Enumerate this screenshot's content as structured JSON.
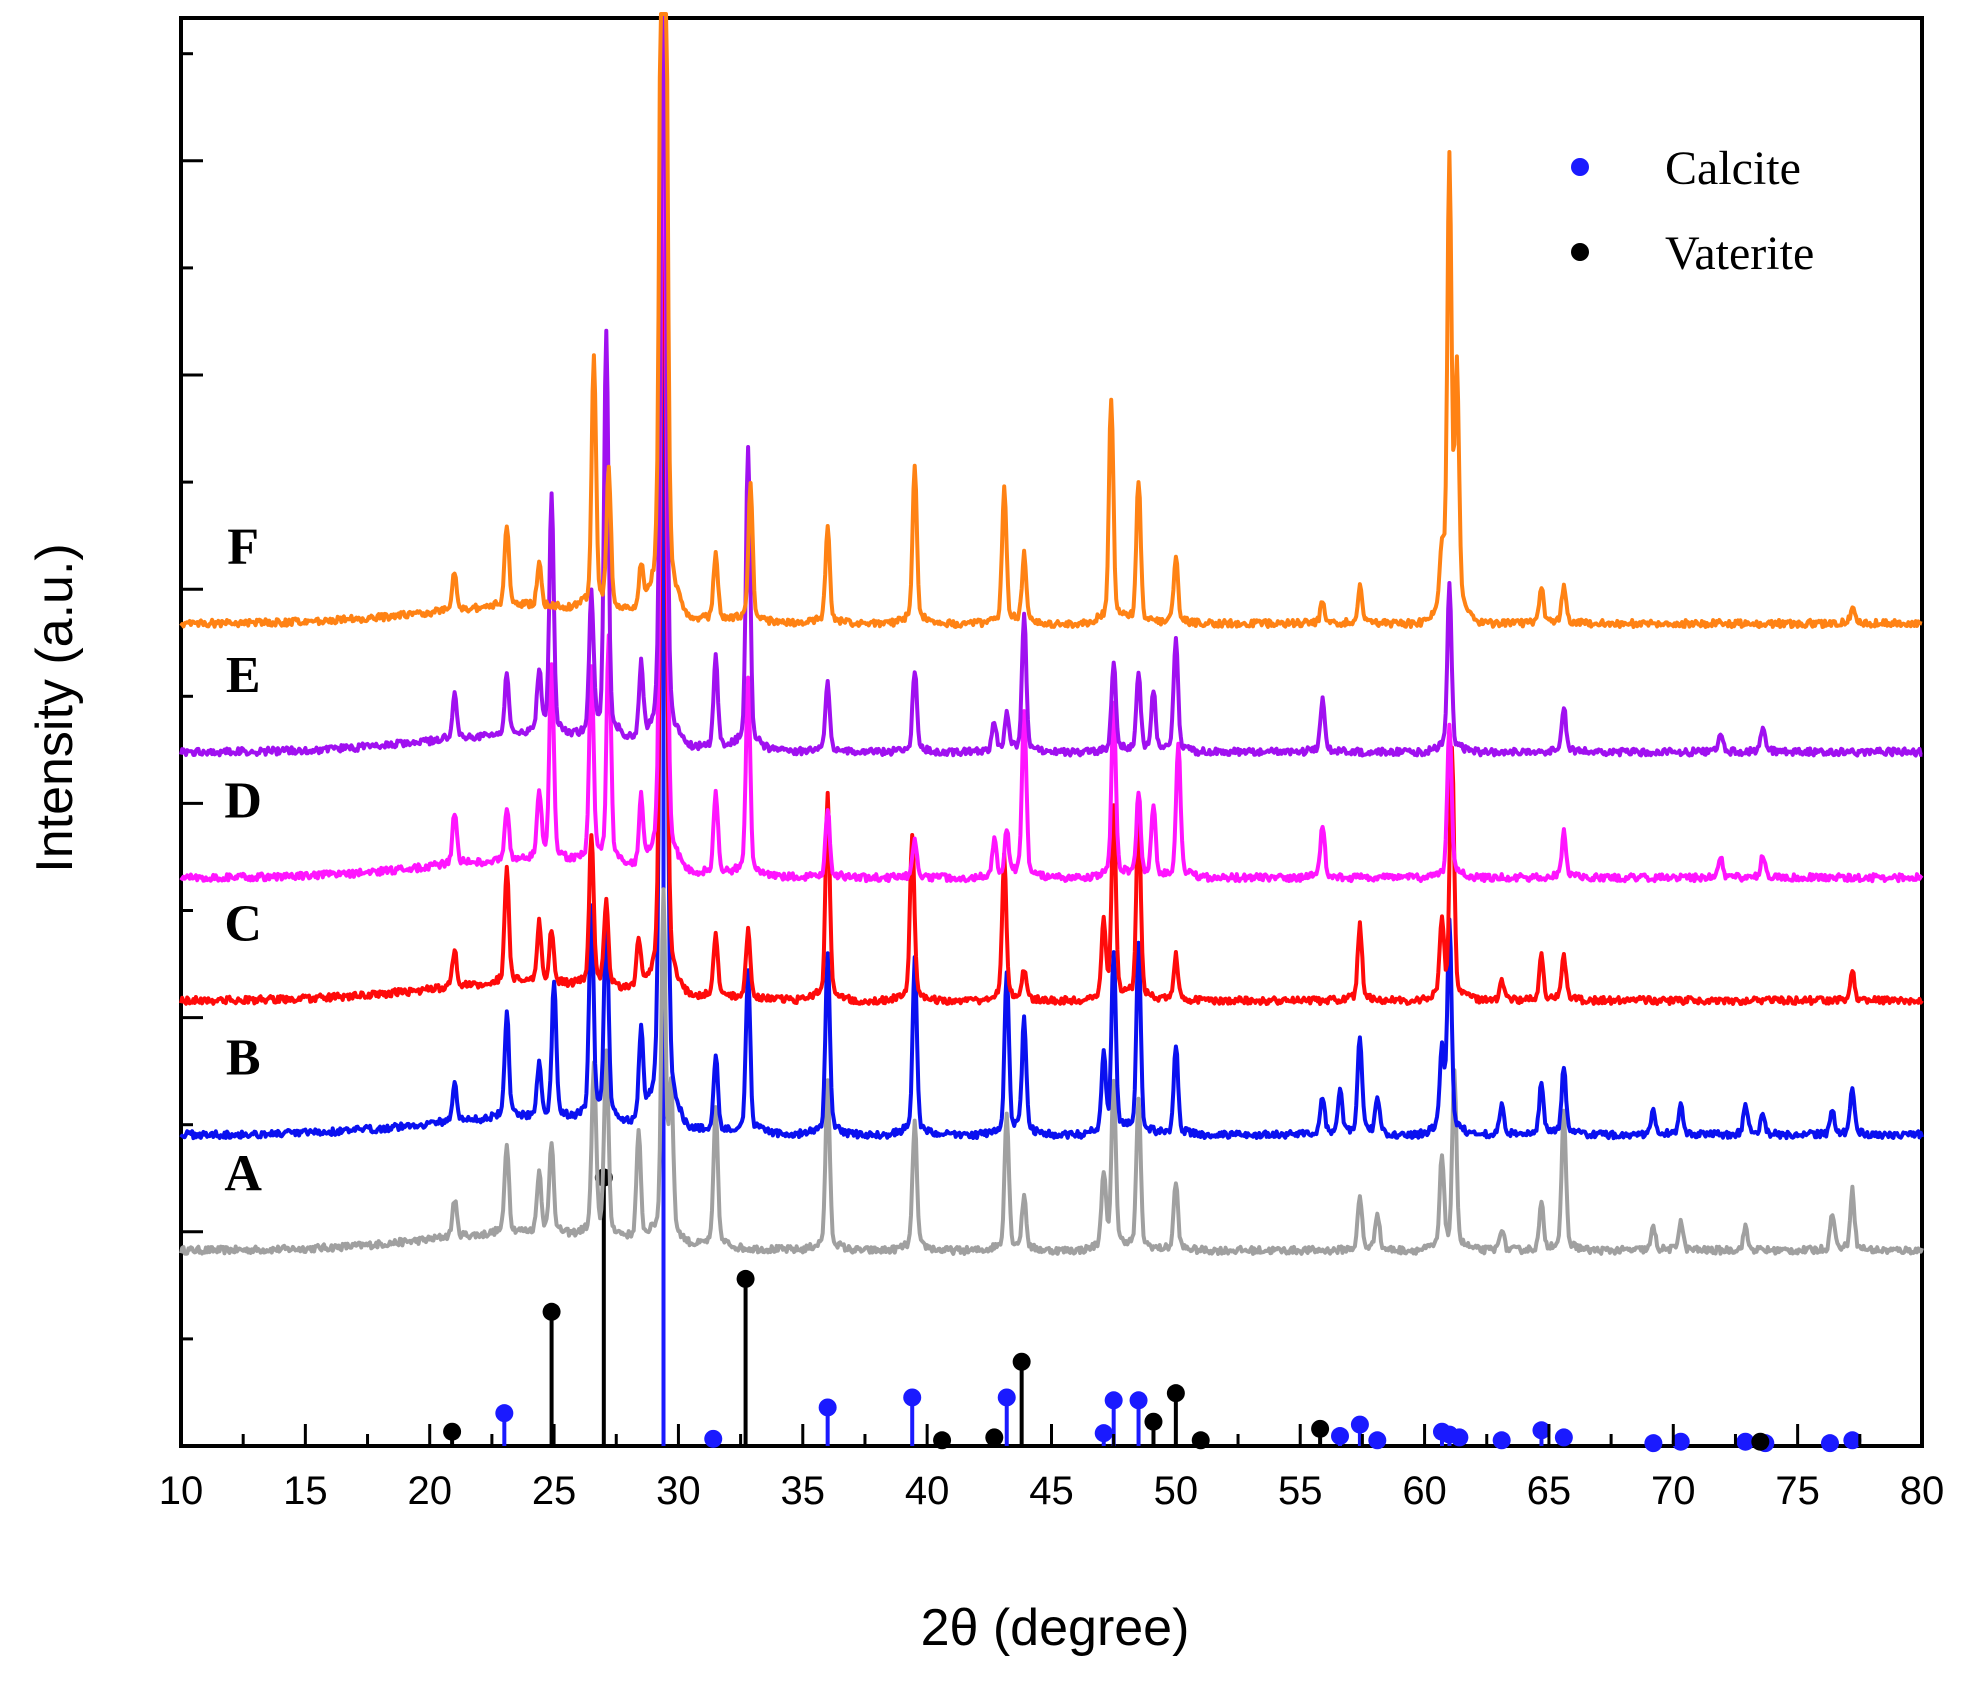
{
  "chart_data": {
    "type": "line",
    "xlabel": "2θ (degree)",
    "ylabel": "Intensity   (a.u.)",
    "xlim": [
      10,
      80
    ],
    "ylim": [
      0,
      10
    ],
    "x_ticks": [
      10,
      15,
      20,
      25,
      30,
      35,
      40,
      45,
      50,
      55,
      60,
      65,
      70,
      75,
      80
    ],
    "x_tick_labels": [
      "10",
      "15",
      "20",
      "25",
      "30",
      "35",
      "40",
      "45",
      "50",
      "55",
      "60",
      "65",
      "70",
      "75",
      "80"
    ],
    "y_tick_labels_shown": false,
    "legend": {
      "position": "top-right",
      "entries": [
        {
          "label": "Calcite",
          "color": "#1a1aff",
          "marker": "circle"
        },
        {
          "label": "Vaterite",
          "color": "#000000",
          "marker": "circle"
        }
      ]
    },
    "series": [
      {
        "name": "A",
        "color": "#a0a0a0",
        "baseline": 1.37,
        "slope": 0.0,
        "peaks": [
          [
            21.0,
            0.25
          ],
          [
            23.1,
            0.6
          ],
          [
            24.4,
            0.4
          ],
          [
            24.9,
            0.6
          ],
          [
            26.6,
            1.1
          ],
          [
            27.1,
            1.2
          ],
          [
            28.4,
            0.7
          ],
          [
            29.4,
            2.3
          ],
          [
            29.7,
            1.0
          ],
          [
            31.5,
            0.9
          ],
          [
            36.0,
            1.1
          ],
          [
            39.5,
            0.85
          ],
          [
            43.2,
            0.9
          ],
          [
            43.9,
            0.35
          ],
          [
            47.1,
            0.5
          ],
          [
            47.5,
            1.1
          ],
          [
            48.5,
            1.0
          ],
          [
            50.0,
            0.45
          ],
          [
            57.4,
            0.35
          ],
          [
            58.1,
            0.25
          ],
          [
            60.7,
            0.6
          ],
          [
            61.2,
            1.15
          ],
          [
            63.1,
            0.15
          ],
          [
            64.7,
            0.3
          ],
          [
            65.6,
            0.9
          ],
          [
            69.2,
            0.15
          ],
          [
            70.3,
            0.2
          ],
          [
            72.9,
            0.15
          ],
          [
            76.4,
            0.25
          ],
          [
            77.2,
            0.4
          ]
        ]
      },
      {
        "name": "B",
        "color": "#0a10f0",
        "baseline": 2.18,
        "slope": 0.0,
        "peaks": [
          [
            21.0,
            0.25
          ],
          [
            23.1,
            0.7
          ],
          [
            24.4,
            0.35
          ],
          [
            25.0,
            0.9
          ],
          [
            26.5,
            1.4
          ],
          [
            27.1,
            1.4
          ],
          [
            28.5,
            0.6
          ],
          [
            29.4,
            8.0
          ],
          [
            31.5,
            0.5
          ],
          [
            32.8,
            1.05
          ],
          [
            36.0,
            1.2
          ],
          [
            39.5,
            1.15
          ],
          [
            43.2,
            1.05
          ],
          [
            43.9,
            0.75
          ],
          [
            47.1,
            0.5
          ],
          [
            47.5,
            1.2
          ],
          [
            48.5,
            1.25
          ],
          [
            50.0,
            0.6
          ],
          [
            55.9,
            0.25
          ],
          [
            56.6,
            0.3
          ],
          [
            57.4,
            0.65
          ],
          [
            58.1,
            0.25
          ],
          [
            60.7,
            0.55
          ],
          [
            61.0,
            1.4
          ],
          [
            63.1,
            0.2
          ],
          [
            64.7,
            0.35
          ],
          [
            65.6,
            0.45
          ],
          [
            69.2,
            0.15
          ],
          [
            70.3,
            0.2
          ],
          [
            72.9,
            0.2
          ],
          [
            73.6,
            0.15
          ],
          [
            76.4,
            0.15
          ],
          [
            77.2,
            0.3
          ]
        ]
      },
      {
        "name": "C",
        "color": "#ff0a0a",
        "baseline": 3.12,
        "slope": 0.0,
        "peaks": [
          [
            21.0,
            0.25
          ],
          [
            23.1,
            0.75
          ],
          [
            24.4,
            0.4
          ],
          [
            24.9,
            0.35
          ],
          [
            26.5,
            1.0
          ],
          [
            27.1,
            0.55
          ],
          [
            28.4,
            0.35
          ],
          [
            29.4,
            5.6
          ],
          [
            31.5,
            0.4
          ],
          [
            32.8,
            0.45
          ],
          [
            36.0,
            1.35
          ],
          [
            39.4,
            1.1
          ],
          [
            43.1,
            0.95
          ],
          [
            43.9,
            0.2
          ],
          [
            47.1,
            0.5
          ],
          [
            47.5,
            1.25
          ],
          [
            48.5,
            1.3
          ],
          [
            50.0,
            0.3
          ],
          [
            57.4,
            0.5
          ],
          [
            60.7,
            0.5
          ],
          [
            61.1,
            1.65
          ],
          [
            63.1,
            0.15
          ],
          [
            64.7,
            0.3
          ],
          [
            65.6,
            0.3
          ],
          [
            77.2,
            0.2
          ]
        ]
      },
      {
        "name": "D",
        "color": "#ff14ff",
        "baseline": 3.98,
        "slope": 0.0,
        "peaks": [
          [
            21.0,
            0.35
          ],
          [
            23.1,
            0.35
          ],
          [
            24.4,
            0.45
          ],
          [
            24.9,
            1.3
          ],
          [
            26.5,
            1.3
          ],
          [
            27.2,
            1.5
          ],
          [
            28.5,
            0.45
          ],
          [
            29.4,
            5.4
          ],
          [
            31.5,
            0.55
          ],
          [
            32.8,
            1.3
          ],
          [
            36.0,
            0.45
          ],
          [
            39.5,
            0.25
          ],
          [
            42.7,
            0.25
          ],
          [
            43.2,
            0.3
          ],
          [
            43.9,
            1.1
          ],
          [
            47.5,
            1.15
          ],
          [
            48.5,
            0.55
          ],
          [
            49.1,
            0.45
          ],
          [
            50.1,
            0.9
          ],
          [
            55.9,
            0.35
          ],
          [
            61.0,
            1.0
          ],
          [
            65.6,
            0.3
          ],
          [
            71.9,
            0.15
          ],
          [
            73.6,
            0.15
          ]
        ]
      },
      {
        "name": "E",
        "color": "#a010f0",
        "baseline": 4.86,
        "slope": 0.0,
        "peaks": [
          [
            21.0,
            0.3
          ],
          [
            23.1,
            0.4
          ],
          [
            24.4,
            0.4
          ],
          [
            24.9,
            1.6
          ],
          [
            26.5,
            0.9
          ],
          [
            27.1,
            2.7
          ],
          [
            28.5,
            0.5
          ],
          [
            29.4,
            5.0
          ],
          [
            31.5,
            0.6
          ],
          [
            32.8,
            2.0
          ],
          [
            36.0,
            0.45
          ],
          [
            39.5,
            0.55
          ],
          [
            42.7,
            0.2
          ],
          [
            43.2,
            0.25
          ],
          [
            43.9,
            0.9
          ],
          [
            47.5,
            0.6
          ],
          [
            48.5,
            0.5
          ],
          [
            49.1,
            0.4
          ],
          [
            50.0,
            0.75
          ],
          [
            55.9,
            0.35
          ],
          [
            61.0,
            1.1
          ],
          [
            65.6,
            0.3
          ],
          [
            71.9,
            0.12
          ],
          [
            73.6,
            0.15
          ]
        ]
      },
      {
        "name": "F",
        "color": "#ff8214",
        "baseline": 5.76,
        "slope": 0.0,
        "peaks": [
          [
            21.0,
            0.25
          ],
          [
            23.1,
            0.55
          ],
          [
            24.4,
            0.3
          ],
          [
            26.6,
            1.65
          ],
          [
            27.2,
            0.9
          ],
          [
            28.5,
            0.3
          ],
          [
            29.4,
            8.0
          ],
          [
            31.5,
            0.45
          ],
          [
            32.9,
            0.9
          ],
          [
            36.0,
            0.65
          ],
          [
            39.5,
            1.05
          ],
          [
            43.1,
            0.9
          ],
          [
            43.9,
            0.45
          ],
          [
            47.4,
            1.5
          ],
          [
            48.5,
            0.95
          ],
          [
            50.0,
            0.45
          ],
          [
            55.9,
            0.15
          ],
          [
            57.4,
            0.25
          ],
          [
            60.7,
            0.4
          ],
          [
            61.0,
            3.0
          ],
          [
            61.3,
            1.6
          ],
          [
            64.7,
            0.25
          ],
          [
            65.6,
            0.25
          ],
          [
            77.2,
            0.1
          ]
        ]
      }
    ],
    "reference_sticks": {
      "Calcite": {
        "color": "#1a1aff",
        "positions": [
          23.0,
          29.4,
          31.4,
          36.0,
          39.4,
          43.2,
          47.1,
          47.5,
          48.5,
          56.6,
          57.4,
          58.1,
          60.7,
          61.0,
          61.4,
          63.1,
          64.7,
          65.6,
          69.2,
          70.3,
          72.9,
          73.7,
          76.3,
          77.2
        ],
        "heights": [
          0.23,
          10.0,
          0.05,
          0.27,
          0.34,
          0.34,
          0.09,
          0.32,
          0.32,
          0.07,
          0.15,
          0.04,
          0.1,
          0.08,
          0.06,
          0.04,
          0.11,
          0.06,
          0.02,
          0.03,
          0.03,
          0.02,
          0.02,
          0.04
        ]
      },
      "Vaterite": {
        "color": "#000000",
        "positions": [
          20.9,
          24.9,
          27.0,
          32.7,
          40.6,
          42.7,
          43.8,
          49.1,
          50.0,
          51.0,
          55.8,
          73.5
        ],
        "heights": [
          0.1,
          0.94,
          1.88,
          1.17,
          0.04,
          0.06,
          0.59,
          0.17,
          0.37,
          0.04,
          0.12,
          0.03
        ]
      }
    }
  }
}
